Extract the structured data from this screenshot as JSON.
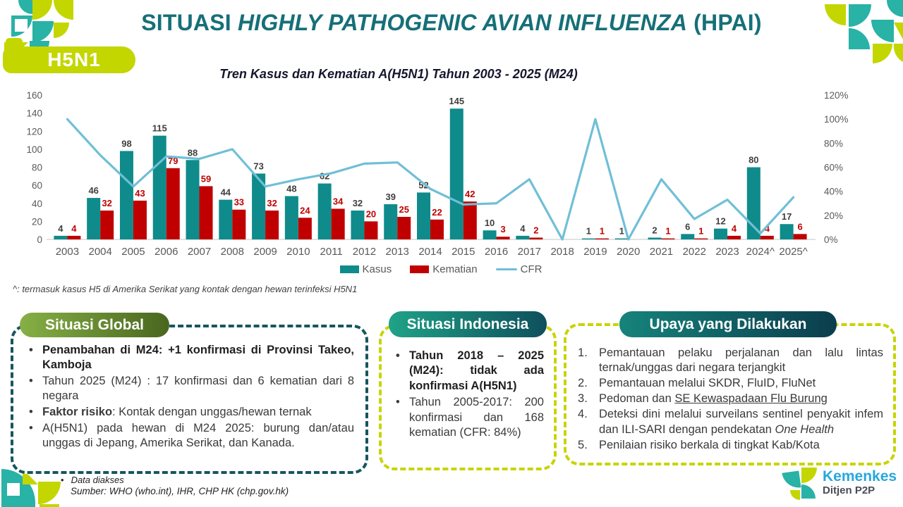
{
  "header": {
    "title_pre": "SITUASI ",
    "title_italic": "HIGHLY PATHOGENIC AVIAN INFLUENZA",
    "title_post": " (HPAI)",
    "badge": "H5N1"
  },
  "chart_data": {
    "type": "bar",
    "title": "Tren Kasus dan Kematian A(H5N1) Tahun 2003 - 2025 (M24)",
    "categories": [
      "2003",
      "2004",
      "2005",
      "2006",
      "2007",
      "2008",
      "2009",
      "2010",
      "2011",
      "2012",
      "2013",
      "2014",
      "2015",
      "2016",
      "2017",
      "2018",
      "2019",
      "2020",
      "2021",
      "2022",
      "2023",
      "2024^",
      "2025^"
    ],
    "series": [
      {
        "name": "Kasus",
        "color": "#0f8b8b",
        "values": [
          4,
          46,
          98,
          115,
          88,
          44,
          73,
          48,
          62,
          32,
          39,
          52,
          145,
          10,
          4,
          null,
          1,
          1,
          2,
          6,
          12,
          80,
          17
        ]
      },
      {
        "name": "Kematian",
        "color": "#c00000",
        "values": [
          4,
          32,
          43,
          79,
          59,
          33,
          32,
          24,
          34,
          20,
          25,
          22,
          42,
          3,
          2,
          null,
          1,
          null,
          1,
          1,
          4,
          4,
          6
        ]
      }
    ],
    "line": {
      "name": "CFR",
      "color": "#70bfd6",
      "values_pct": [
        100,
        70,
        44,
        69,
        67,
        75,
        44,
        50,
        55,
        63,
        64,
        42,
        29,
        30,
        50,
        0,
        100,
        0,
        50,
        17,
        33,
        5,
        35
      ]
    },
    "left_axis": {
      "min": 0,
      "max": 160,
      "step": 20
    },
    "right_axis": {
      "min": 0,
      "max": 120,
      "step": 20,
      "suffix": "%"
    },
    "legend_position": "bottom",
    "grid": false
  },
  "footnote": "^: termasuk kasus H5 di Amerika Serikat yang kontak dengan hewan terinfeksi H5N1",
  "boxes": {
    "global": {
      "header": "Situasi Global",
      "items": [
        {
          "text": "Penambahan di M24: +1 konfirmasi di Provinsi Takeo, Kamboja"
        },
        {
          "text": "Tahun 2025 (M24) : 17 konfirmasi dan 6 kematian dari 8 negara"
        },
        {
          "bold": "Faktor risiko",
          "rest": ": Kontak dengan unggas/hewan ternak"
        },
        {
          "text": "A(H5N1) pada hewan di M24 2025: burung dan/atau unggas di Jepang, Amerika Serikat, dan Kanada."
        }
      ]
    },
    "indonesia": {
      "header": "Situasi Indonesia",
      "items": [
        {
          "text": "Tahun 2018 – 2025 (M24): tidak ada konfirmasi A(H5N1)"
        },
        {
          "text": "Tahun 2005-2017: 200 konfirmasi dan 168 kematian (CFR: 84%)"
        }
      ]
    },
    "upaya": {
      "header": "Upaya yang Dilakukan",
      "items": [
        {
          "text": "Pemantauan pelaku perjalanan dan lalu lintas ternak/unggas dari negara terjangkit"
        },
        {
          "text": "Pemantauan melalui SKDR, FluID, FluNet"
        },
        {
          "pre": "Pedoman dan ",
          "underline": "SE Kewaspadaan Flu Burung"
        },
        {
          "pre": "Deteksi dini melalui surveilans sentinel penyakit infem dan ILI-SARI dengan pendekatan ",
          "italic": "One Health"
        },
        {
          "text": "Penilaian risiko berkala di tingkat Kab/Kota"
        }
      ]
    }
  },
  "footer": {
    "line1": "Data diakses",
    "line2": "Sumber: WHO (who.int), IHR, CHP HK (chp.gov.hk)"
  },
  "logo": {
    "name": "Kemenkes",
    "sub": "Ditjen P2P"
  },
  "colors": {
    "title_teal": "#166f78",
    "badge_lime": "#c3d600",
    "bar_kasus": "#0f8b8b",
    "bar_kematian": "#c00000",
    "cfr_line": "#70bfd6",
    "global_header": "#5d8030",
    "indonesia_header": "#178a77",
    "upaya_header": "#0f5f60",
    "global_border": "#15565f",
    "lime_border": "#c8d400",
    "deco_teal": "#29b2a6"
  }
}
